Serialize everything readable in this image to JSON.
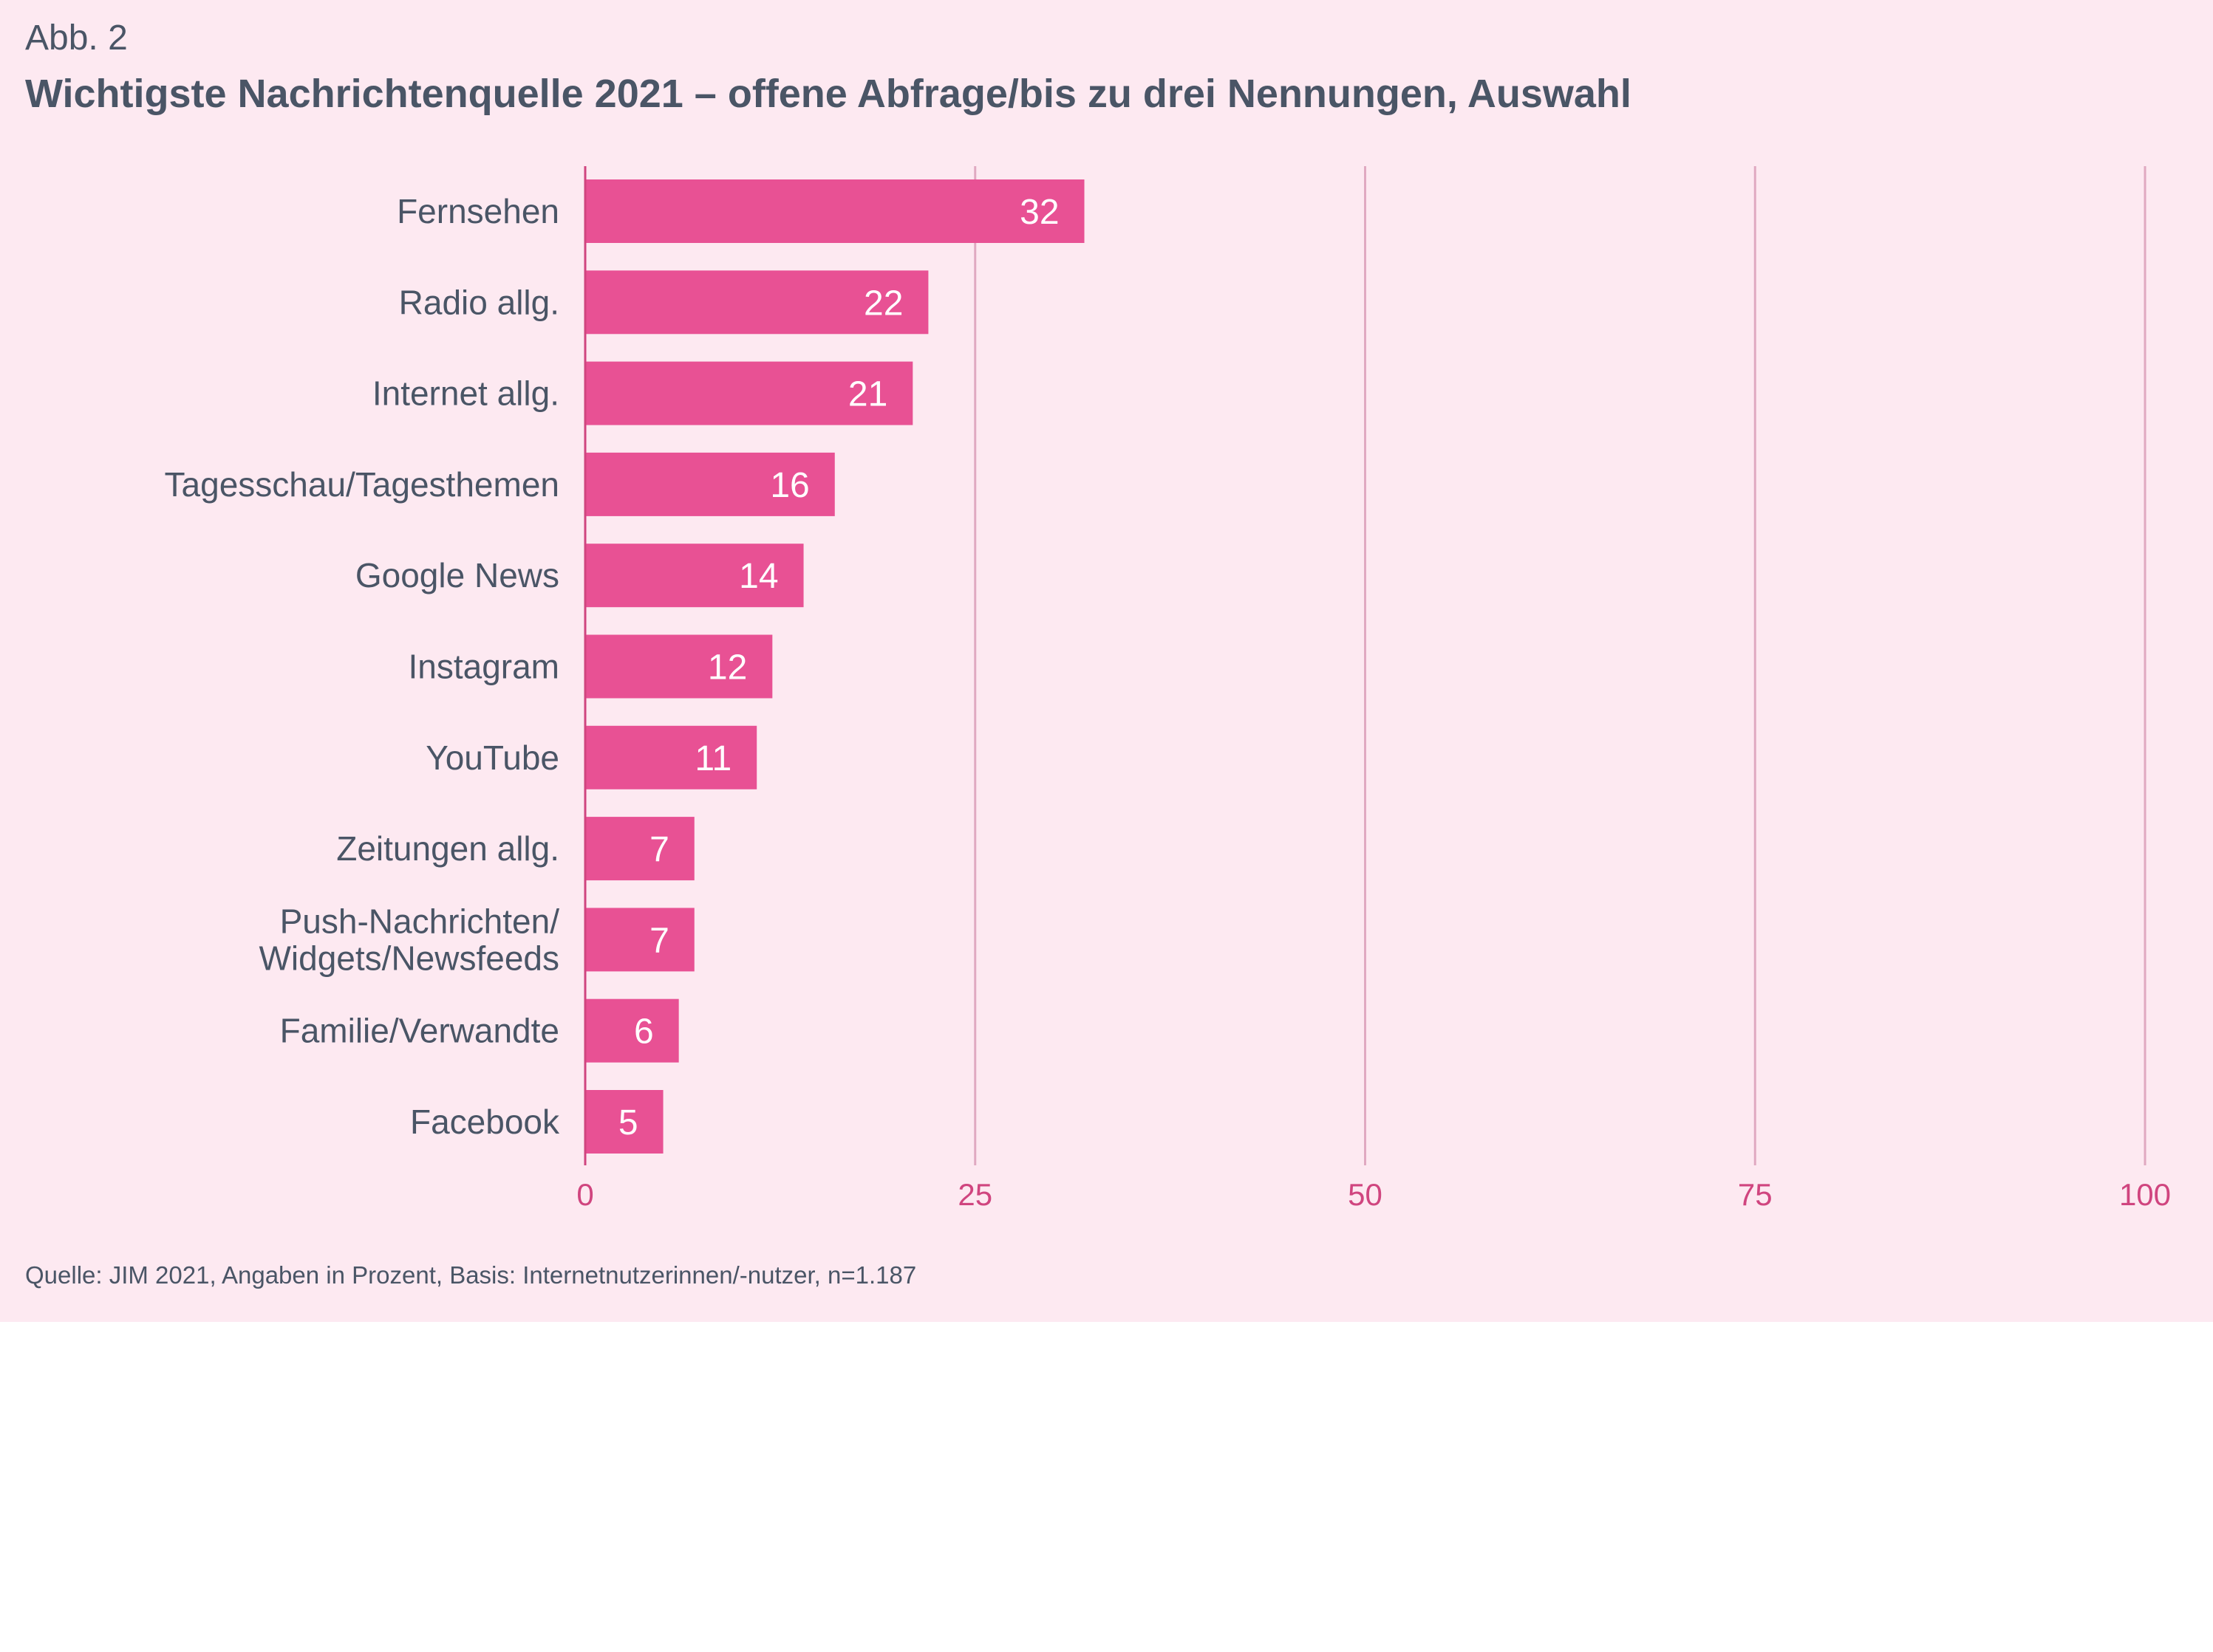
{
  "header": {
    "figure_label": "Abb. 2",
    "title": "Wichtigste Nachrichtenquelle 2021 – offene Abfrage/bis zu drei Nennungen, Auswahl"
  },
  "footer": {
    "source": "Quelle: JIM 2021, Angaben in Prozent, Basis: Internetnutzerinnen/-nutzer, n=1.187"
  },
  "colors": {
    "background": "#fde9f1",
    "bar": "#e85194",
    "axis_text": "#d0457f",
    "gridline": "#e0a9c1",
    "label_text": "#4a5566"
  },
  "chart_data": {
    "type": "bar",
    "orientation": "horizontal",
    "title": "Wichtigste Nachrichtenquelle 2021 – offene Abfrage/bis zu drei Nennungen, Auswahl",
    "categories": [
      "Fernsehen",
      "Radio allg.",
      "Internet allg.",
      "Tagesschau/Tagesthemen",
      "Google News",
      "Instagram",
      "YouTube",
      "Zeitungen allg.",
      "Push-Nachrichten/\nWidgets/Newsfeeds",
      "Familie/Verwandte",
      "Facebook"
    ],
    "values": [
      32,
      22,
      21,
      16,
      14,
      12,
      11,
      7,
      7,
      6,
      5
    ],
    "xlim": [
      0,
      100
    ],
    "xticks": [
      0,
      25,
      50,
      75,
      100
    ],
    "grid": true,
    "data_labels": true
  }
}
